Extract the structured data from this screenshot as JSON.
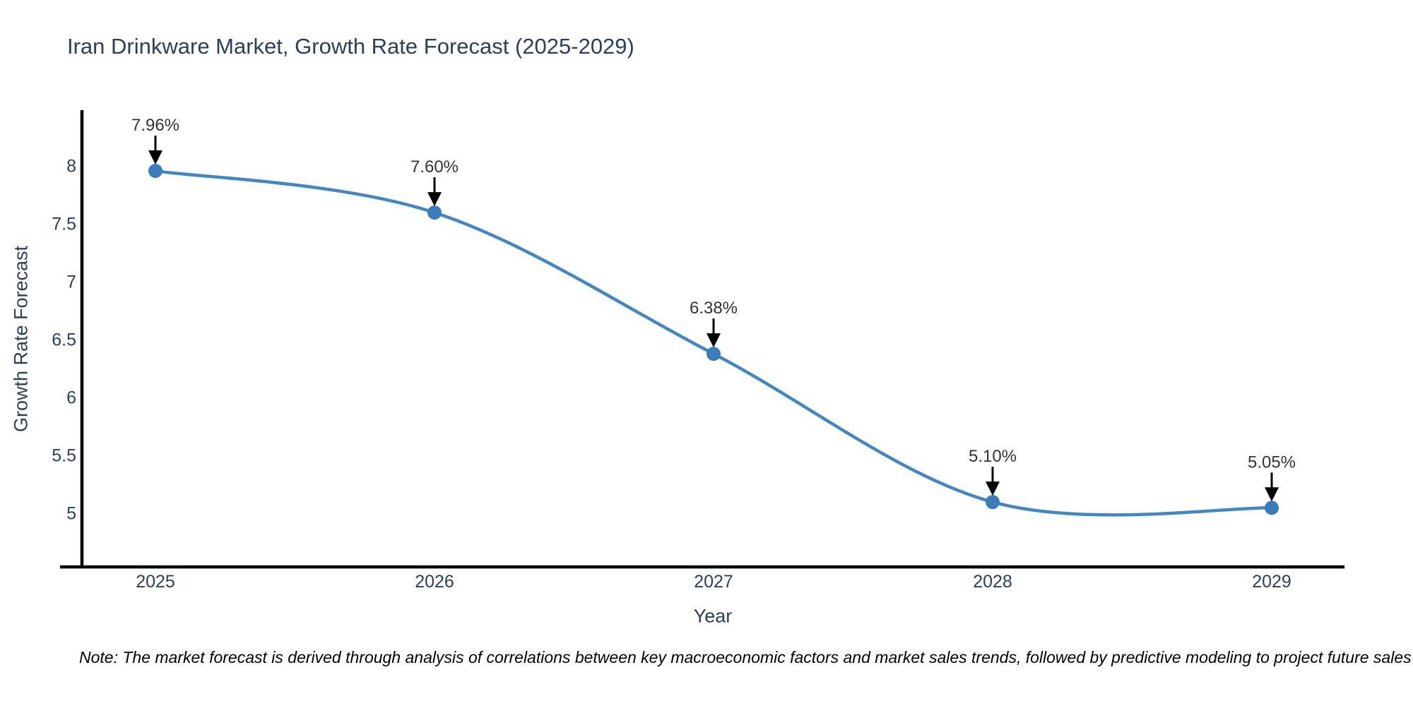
{
  "title": "Iran Drinkware Market, Growth Rate Forecast (2025-2029)",
  "footnote": "Note: The market forecast is derived through analysis of correlations between key macroeconomic factors and market sales trends, followed by predictive modeling to project future sales",
  "chart_data": {
    "type": "line",
    "title": "Iran Drinkware Market, Growth Rate Forecast (2025-2029)",
    "xlabel": "Year",
    "ylabel": "Growth Rate Forecast",
    "x": [
      "2025",
      "2026",
      "2027",
      "2028",
      "2029"
    ],
    "series": [
      {
        "name": "Growth Rate Forecast",
        "values": [
          7.96,
          7.6,
          6.38,
          5.1,
          5.05
        ],
        "point_labels": [
          "7.96%",
          "7.60%",
          "6.38%",
          "5.10%",
          "5.05%"
        ]
      }
    ],
    "curve": "spline",
    "markers": true,
    "grid": false,
    "legend": "none",
    "ylim": [
      4.54,
      8.51
    ],
    "yticks": [
      "8",
      "7.5",
      "7",
      "6.5",
      "6",
      "5.5",
      "5"
    ],
    "ytick_values": [
      8,
      7.5,
      7,
      6.5,
      6,
      5.5,
      5
    ],
    "colors": {
      "line": "#4486c2",
      "marker": "#3b7cba",
      "arrow": "#000000",
      "axis": "#000000",
      "tick_text": "#2a3f5f",
      "annotation_text": "#333333",
      "title_text": "#2a3f5f",
      "background": "#ffffff"
    }
  }
}
